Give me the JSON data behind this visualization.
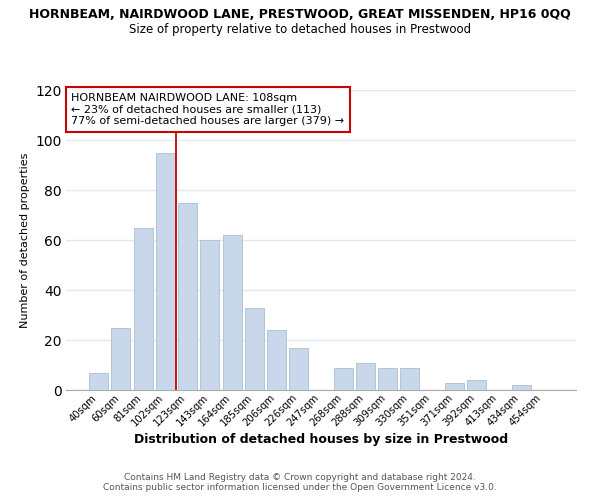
{
  "title": "HORNBEAM, NAIRDWOOD LANE, PRESTWOOD, GREAT MISSENDEN, HP16 0QQ",
  "subtitle": "Size of property relative to detached houses in Prestwood",
  "xlabel": "Distribution of detached houses by size in Prestwood",
  "ylabel": "Number of detached properties",
  "categories": [
    "40sqm",
    "60sqm",
    "81sqm",
    "102sqm",
    "123sqm",
    "143sqm",
    "164sqm",
    "185sqm",
    "206sqm",
    "226sqm",
    "247sqm",
    "268sqm",
    "288sqm",
    "309sqm",
    "330sqm",
    "351sqm",
    "371sqm",
    "392sqm",
    "413sqm",
    "434sqm",
    "454sqm"
  ],
  "values": [
    7,
    25,
    65,
    95,
    75,
    60,
    62,
    33,
    24,
    17,
    0,
    9,
    11,
    9,
    9,
    0,
    3,
    4,
    0,
    2,
    0
  ],
  "bar_color": "#c8d8ea",
  "bar_edge_color": "#aabfcf",
  "vline_color": "#cc0000",
  "vline_x": 3.5,
  "annotation_text_line1": "HORNBEAM NAIRDWOOD LANE: 108sqm",
  "annotation_text_line2": "← 23% of detached houses are smaller (113)",
  "annotation_text_line3": "77% of semi-detached houses are larger (379) →",
  "ylim": [
    0,
    120
  ],
  "yticks": [
    0,
    20,
    40,
    60,
    80,
    100,
    120
  ],
  "footer1": "Contains HM Land Registry data © Crown copyright and database right 2024.",
  "footer2": "Contains public sector information licensed under the Open Government Licence v3.0.",
  "background_color": "#ffffff",
  "plot_background": "#ffffff",
  "grid_color": "#e0e8f0"
}
